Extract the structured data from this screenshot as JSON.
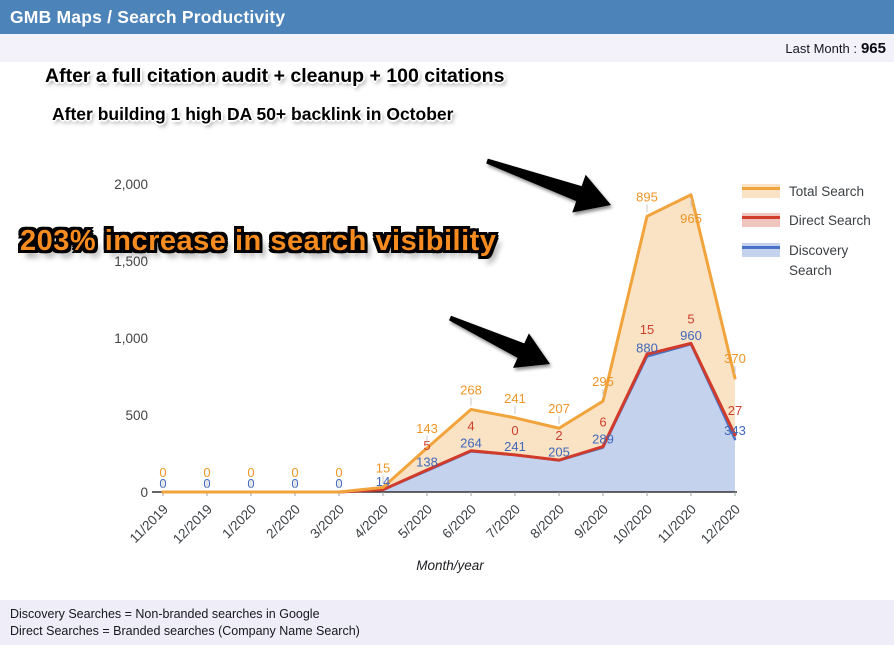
{
  "header": {
    "title": "GMB Maps / Search Productivity",
    "accent_color": "#4C83B8"
  },
  "summary_bar": {
    "label": "Last Month :",
    "value": "965"
  },
  "annotations": {
    "line1": "After a full citation audit + cleanup + 100 citations",
    "line2": "After building 1 high DA 50+ backlink in October",
    "highlight": "203% increase in search visibility",
    "highlight_color": "#F68B1F"
  },
  "footer": {
    "line1": "Discovery Searches = Non-branded searches in Google",
    "line2": "Direct Searches = Branded searches (Company Name Search)"
  },
  "chart_data": {
    "type": "area",
    "stacked": true,
    "title": "",
    "xlabel": "Month/year",
    "x": [
      "11/2019",
      "12/2019",
      "1/2020",
      "2/2020",
      "3/2020",
      "4/2020",
      "5/2020",
      "6/2020",
      "7/2020",
      "8/2020",
      "9/2020",
      "10/2020",
      "11/2020",
      "12/2020"
    ],
    "ylim": [
      0,
      2000
    ],
    "ytick_labels": [
      "0",
      "500",
      "1,000",
      "1,500",
      "2,000"
    ],
    "grid": false,
    "legend_position": "right",
    "series": [
      {
        "name": "Total Search",
        "line_color": "#F1A33C",
        "fill_color": "#FAE2C4",
        "label_color": "#EE9526",
        "values": [
          0,
          0,
          0,
          0,
          0,
          15,
          143,
          268,
          241,
          207,
          295,
          895,
          965,
          370
        ],
        "point_labels": [
          "0",
          "0",
          "0",
          "0",
          "0",
          "15",
          "143",
          "268",
          "241",
          "207",
          "295",
          "895",
          "965",
          "370"
        ]
      },
      {
        "name": "Direct Search",
        "line_color": "#D13B2B",
        "fill_color": "#F0C5BE",
        "label_color": "#CD3F2D",
        "values": [
          0,
          0,
          0,
          0,
          0,
          1,
          5,
          4,
          0,
          2,
          6,
          15,
          5,
          27
        ],
        "point_labels": [
          "",
          "",
          "",
          "",
          "",
          "",
          "5",
          "4",
          "0",
          "2",
          "6",
          "15",
          "5",
          "27"
        ]
      },
      {
        "name": "Discovery Search",
        "line_color": "#4673C7",
        "fill_color": "#C5D2ED",
        "label_color": "#4169BC",
        "values": [
          0,
          0,
          0,
          0,
          0,
          14,
          138,
          264,
          241,
          205,
          289,
          880,
          960,
          343
        ],
        "point_labels": [
          "0",
          "0",
          "0",
          "0",
          "0",
          "14",
          "138",
          "264",
          "241",
          "205",
          "289",
          "880",
          "960",
          "343"
        ]
      }
    ]
  }
}
